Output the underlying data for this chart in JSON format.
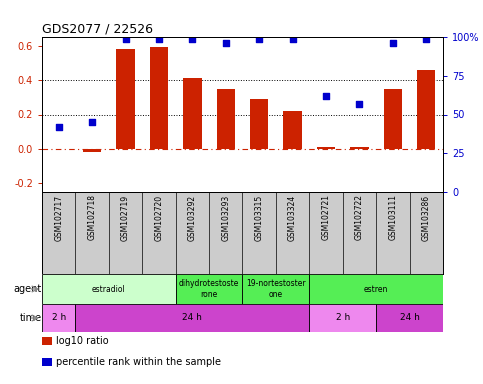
{
  "title": "GDS2077 / 22526",
  "samples": [
    "GSM102717",
    "GSM102718",
    "GSM102719",
    "GSM102720",
    "GSM103292",
    "GSM103293",
    "GSM103315",
    "GSM103324",
    "GSM102721",
    "GSM102722",
    "GSM103111",
    "GSM103286"
  ],
  "log10_ratio": [
    0.0,
    -0.02,
    0.58,
    0.59,
    0.41,
    0.35,
    0.29,
    0.22,
    0.01,
    0.01,
    0.35,
    0.46
  ],
  "percentile": [
    42,
    45,
    99,
    99,
    99,
    96,
    99,
    99,
    62,
    57,
    96,
    99
  ],
  "bar_color": "#cc2200",
  "dot_color": "#0000cc",
  "ylim_left": [
    -0.25,
    0.65
  ],
  "ylim_right": [
    0,
    100
  ],
  "yticks_left": [
    -0.2,
    0.0,
    0.2,
    0.4,
    0.6
  ],
  "yticks_right": [
    0,
    25,
    50,
    75,
    100
  ],
  "ytick_labels_right": [
    "0",
    "25",
    "50",
    "75",
    "100%"
  ],
  "agent_groups": [
    {
      "label": "estradiol",
      "start": 0,
      "end": 4,
      "color": "#ccffcc"
    },
    {
      "label": "dihydrotestoste\nrone",
      "start": 4,
      "end": 6,
      "color": "#55ee55"
    },
    {
      "label": "19-nortestoster\none",
      "start": 6,
      "end": 8,
      "color": "#55ee55"
    },
    {
      "label": "estren",
      "start": 8,
      "end": 12,
      "color": "#55ee55"
    }
  ],
  "time_groups": [
    {
      "label": "2 h",
      "start": 0,
      "end": 1,
      "color": "#ee88ee"
    },
    {
      "label": "24 h",
      "start": 1,
      "end": 8,
      "color": "#cc44cc"
    },
    {
      "label": "2 h",
      "start": 8,
      "end": 10,
      "color": "#ee88ee"
    },
    {
      "label": "24 h",
      "start": 10,
      "end": 12,
      "color": "#cc44cc"
    }
  ],
  "legend_items": [
    {
      "color": "#cc2200",
      "label": "log10 ratio"
    },
    {
      "color": "#0000cc",
      "label": "percentile rank within the sample"
    }
  ],
  "bg_color": "#ffffff",
  "sample_bg_color": "#cccccc"
}
